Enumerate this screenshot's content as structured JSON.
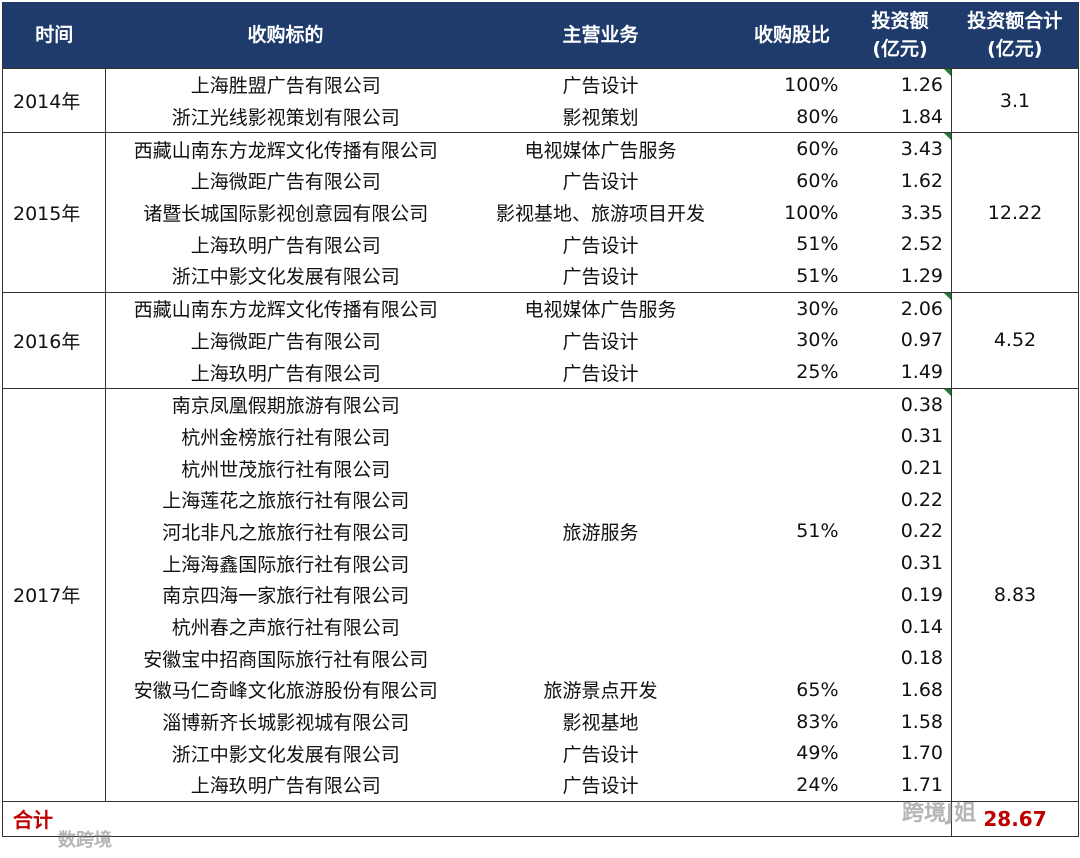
{
  "header": {
    "columns": [
      "时间",
      "收购标的",
      "主营业务",
      "收购股比",
      "投资额\n(亿元)",
      "投资额合计\n(亿元)"
    ]
  },
  "groups": [
    {
      "year": "2014年",
      "total": "3.1",
      "items": [
        {
          "business": "广告设计",
          "ratio": "100%",
          "companies": [
            {
              "name": "上海胜盟广告有限公司",
              "amount": "1.26"
            }
          ]
        },
        {
          "business": "影视策划",
          "ratio": "80%",
          "companies": [
            {
              "name": "浙江光线影视策划有限公司",
              "amount": "1.84"
            }
          ]
        }
      ]
    },
    {
      "year": "2015年",
      "total": "12.22",
      "items": [
        {
          "business": "电视媒体广告服务",
          "ratio": "60%",
          "companies": [
            {
              "name": "西藏山南东方龙辉文化传播有限公司",
              "amount": "3.43"
            }
          ]
        },
        {
          "business": "广告设计",
          "ratio": "60%",
          "companies": [
            {
              "name": "上海微距广告有限公司",
              "amount": "1.62"
            }
          ]
        },
        {
          "business": "影视基地、旅游项目开发",
          "ratio": "100%",
          "companies": [
            {
              "name": "诸暨长城国际影视创意园有限公司",
              "amount": "3.35"
            }
          ]
        },
        {
          "business": "广告设计",
          "ratio": "51%",
          "companies": [
            {
              "name": "上海玖明广告有限公司",
              "amount": "2.52"
            }
          ]
        },
        {
          "business": "广告设计",
          "ratio": "51%",
          "companies": [
            {
              "name": "浙江中影文化发展有限公司",
              "amount": "1.29"
            }
          ]
        }
      ]
    },
    {
      "year": "2016年",
      "total": "4.52",
      "items": [
        {
          "business": "电视媒体广告服务",
          "ratio": "30%",
          "companies": [
            {
              "name": "西藏山南东方龙辉文化传播有限公司",
              "amount": "2.06"
            }
          ]
        },
        {
          "business": "广告设计",
          "ratio": "30%",
          "companies": [
            {
              "name": "上海微距广告有限公司",
              "amount": "0.97"
            }
          ]
        },
        {
          "business": "广告设计",
          "ratio": "25%",
          "companies": [
            {
              "name": "上海玖明广告有限公司",
              "amount": "1.49"
            }
          ]
        }
      ]
    },
    {
      "year": "2017年",
      "total": "8.83",
      "items": [
        {
          "business": "旅游服务",
          "ratio": "51%",
          "companies": [
            {
              "name": "南京凤凰假期旅游有限公司",
              "amount": "0.38"
            },
            {
              "name": "杭州金榜旅行社有限公司",
              "amount": "0.31"
            },
            {
              "name": "杭州世茂旅行社有限公司",
              "amount": "0.21"
            },
            {
              "name": "上海莲花之旅旅行社有限公司",
              "amount": "0.22"
            },
            {
              "name": "河北非凡之旅旅行社有限公司",
              "amount": "0.22"
            },
            {
              "name": "上海海鑫国际旅行社有限公司",
              "amount": "0.31"
            },
            {
              "name": "南京四海一家旅行社有限公司",
              "amount": "0.19"
            },
            {
              "name": "杭州春之声旅行社有限公司",
              "amount": "0.14"
            },
            {
              "name": "安徽宝中招商国际旅行社有限公司",
              "amount": "0.18"
            }
          ]
        },
        {
          "business": "旅游景点开发",
          "ratio": "65%",
          "companies": [
            {
              "name": "安徽马仁奇峰文化旅游股份有限公司",
              "amount": "1.68"
            }
          ]
        },
        {
          "business": "影视基地",
          "ratio": "83%",
          "companies": [
            {
              "name": "淄博新齐长城影视城有限公司",
              "amount": "1.58"
            }
          ]
        },
        {
          "business": "广告设计",
          "ratio": "49%",
          "companies": [
            {
              "name": "浙江中影文化发展有限公司",
              "amount": "1.70"
            }
          ]
        },
        {
          "business": "广告设计",
          "ratio": "24%",
          "companies": [
            {
              "name": "上海玖明广告有限公司",
              "amount": "1.71"
            }
          ]
        }
      ]
    }
  ],
  "total": {
    "label": "合计",
    "value": "28.67"
  },
  "watermarks": [
    "跨境J姐",
    "数跨境"
  ]
}
